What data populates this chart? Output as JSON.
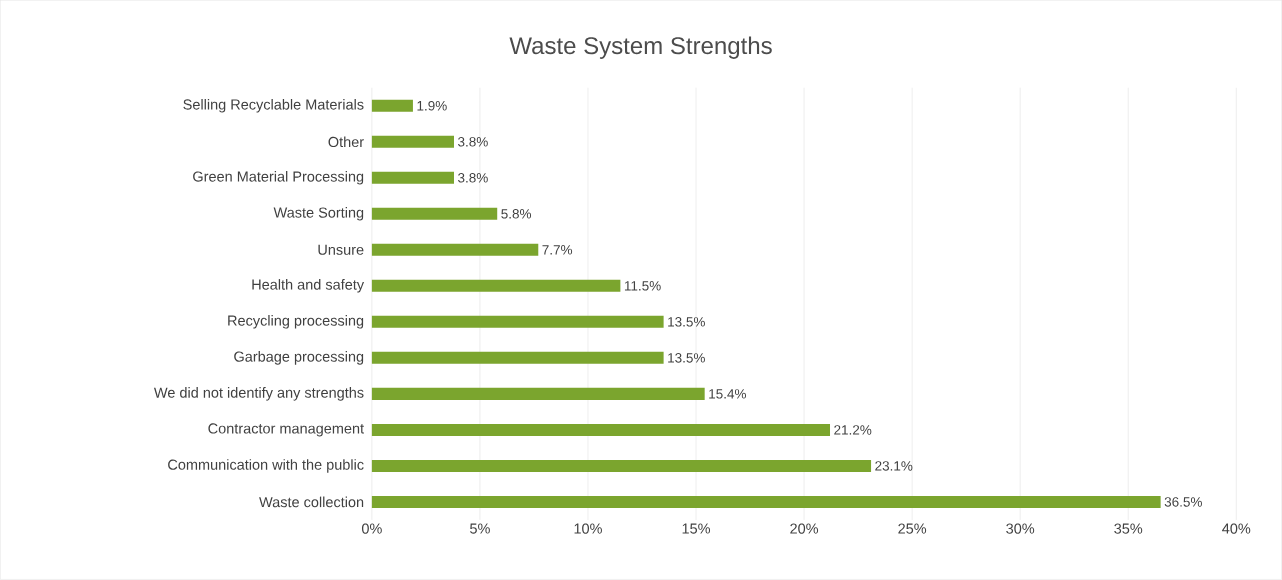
{
  "chart_data": {
    "type": "bar",
    "orientation": "horizontal",
    "title": "Waste System Strengths",
    "categories": [
      "Selling Recyclable Materials",
      "Other",
      "Green Material Processing",
      "Waste Sorting",
      "Unsure",
      "Health and safety",
      "Recycling processing",
      "Garbage processing",
      "We did not identify any strengths",
      "Contractor management",
      "Communication with the public",
      "Waste collection"
    ],
    "values": [
      1.9,
      3.8,
      3.8,
      5.8,
      7.7,
      11.5,
      13.5,
      13.5,
      15.4,
      21.2,
      23.1,
      36.5
    ],
    "value_labels": [
      "1.9%",
      "3.8%",
      "3.8%",
      "5.8%",
      "7.7%",
      "11.5%",
      "13.5%",
      "13.5%",
      "15.4%",
      "21.2%",
      "23.1%",
      "36.5%"
    ],
    "color": "#7ba52e",
    "xlim": [
      0,
      40
    ],
    "xticks": [
      {
        "value": 0,
        "label": "0%"
      },
      {
        "value": 5,
        "label": "5%"
      },
      {
        "value": 10,
        "label": "10%"
      },
      {
        "value": 15,
        "label": "15%"
      },
      {
        "value": 20,
        "label": "20%"
      },
      {
        "value": 25,
        "label": "25%"
      },
      {
        "value": 30,
        "label": "30%"
      },
      {
        "value": 35,
        "label": "35%"
      },
      {
        "value": 40,
        "label": "40%"
      }
    ],
    "grid": "x"
  }
}
